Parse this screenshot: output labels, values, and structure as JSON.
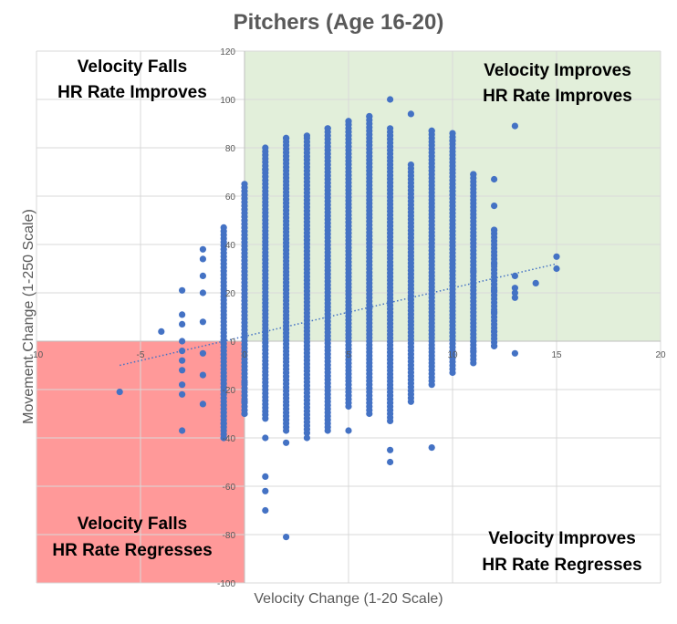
{
  "chart_data": {
    "type": "scatter",
    "title": "Pitchers (Age 16-20)",
    "xlabel": "Velocity Change (1-20 Scale)",
    "ylabel": "Movement Change (1-250 Scale)",
    "xlim": [
      -10,
      20
    ],
    "ylim": [
      -100,
      120
    ],
    "x_ticks": [
      -10,
      -5,
      0,
      5,
      10,
      15,
      20
    ],
    "y_ticks": [
      -100,
      -80,
      -60,
      -40,
      -20,
      0,
      20,
      40,
      60,
      80,
      100,
      120
    ],
    "grid": true,
    "point_color": "#4472c4",
    "trendline": {
      "style": "dotted-linear",
      "color": "#4472c4",
      "from": [
        -6,
        -10
      ],
      "to": [
        15,
        32
      ]
    },
    "quadrants": [
      {
        "label_line1": "Velocity Falls",
        "label_line2": "HR Rate Improves",
        "fill": "none"
      },
      {
        "label_line1": "Velocity Improves",
        "label_line2": "HR Rate Improves",
        "fill": "#e2efda"
      },
      {
        "label_line1": "Velocity Falls",
        "label_line2": "HR Rate Regresses",
        "fill": "#ff9999"
      },
      {
        "label_line1": "Velocity Improves",
        "label_line2": "HR Rate Regresses",
        "fill": "none"
      }
    ],
    "columns": [
      {
        "x": -1,
        "ymin": -40,
        "ymax": 47
      },
      {
        "x": 0,
        "ymin": -30,
        "ymax": 65
      },
      {
        "x": 1,
        "ymin": -32,
        "ymax": 80
      },
      {
        "x": 2,
        "ymin": -37,
        "ymax": 84
      },
      {
        "x": 3,
        "ymin": -38,
        "ymax": 84
      },
      {
        "x": 4,
        "ymin": -37,
        "ymax": 88
      },
      {
        "x": 5,
        "ymin": -27,
        "ymax": 91
      },
      {
        "x": 6,
        "ymin": -30,
        "ymax": 93
      },
      {
        "x": 7,
        "ymin": -33,
        "ymax": 88
      },
      {
        "x": 8,
        "ymin": -25,
        "ymax": 73
      },
      {
        "x": 9,
        "ymin": -18,
        "ymax": 87
      },
      {
        "x": 10,
        "ymin": -13,
        "ymax": 86
      },
      {
        "x": 11,
        "ymin": -9,
        "ymax": 69
      },
      {
        "x": 12,
        "ymin": -2,
        "ymax": 46
      }
    ],
    "points": [
      [
        -6,
        -21
      ],
      [
        -4,
        4
      ],
      [
        -3,
        -37
      ],
      [
        -3,
        -22
      ],
      [
        -3,
        -18
      ],
      [
        -3,
        -12
      ],
      [
        -3,
        -8
      ],
      [
        -3,
        -4
      ],
      [
        -3,
        0
      ],
      [
        -3,
        7
      ],
      [
        -3,
        11
      ],
      [
        -3,
        21
      ],
      [
        -2,
        -26
      ],
      [
        -2,
        -14
      ],
      [
        -2,
        -5
      ],
      [
        -2,
        8
      ],
      [
        -2,
        20
      ],
      [
        -2,
        27
      ],
      [
        -2,
        34
      ],
      [
        -2,
        38
      ],
      [
        -1,
        -40
      ],
      [
        -1,
        -34
      ],
      [
        0,
        -17
      ],
      [
        0,
        -25
      ],
      [
        0,
        -30
      ],
      [
        1,
        -56
      ],
      [
        1,
        -62
      ],
      [
        1,
        -70
      ],
      [
        1,
        -40
      ],
      [
        1,
        71
      ],
      [
        2,
        -81
      ],
      [
        2,
        -42
      ],
      [
        2,
        84
      ],
      [
        3,
        -40
      ],
      [
        3,
        85
      ],
      [
        4,
        88
      ],
      [
        5,
        -37
      ],
      [
        5,
        91
      ],
      [
        6,
        93
      ],
      [
        7,
        -45
      ],
      [
        7,
        -50
      ],
      [
        7,
        100
      ],
      [
        8,
        94
      ],
      [
        9,
        -44
      ],
      [
        9,
        87
      ],
      [
        10,
        83
      ],
      [
        11,
        69
      ],
      [
        11,
        29
      ],
      [
        11,
        0
      ],
      [
        11,
        -4
      ],
      [
        12,
        67
      ],
      [
        12,
        56
      ],
      [
        12,
        46
      ],
      [
        12,
        32
      ],
      [
        12,
        21
      ],
      [
        12,
        12
      ],
      [
        12,
        4
      ],
      [
        12,
        -2
      ],
      [
        13,
        89
      ],
      [
        13,
        27
      ],
      [
        13,
        22
      ],
      [
        13,
        20
      ],
      [
        13,
        18
      ],
      [
        13,
        -5
      ],
      [
        14,
        24
      ],
      [
        15,
        35
      ],
      [
        15,
        30
      ]
    ]
  }
}
